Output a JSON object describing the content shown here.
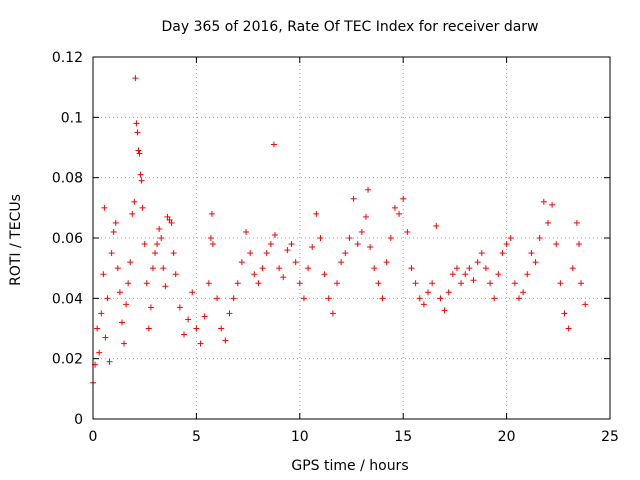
{
  "chart_data": {
    "type": "scatter",
    "title": "Day 365 of 2016, Rate Of TEC Index for receiver darw",
    "xlabel": "GPS time / hours",
    "ylabel": "ROTI / TECUs",
    "xlim": [
      0,
      25
    ],
    "ylim": [
      0,
      0.12
    ],
    "x_ticks": [
      0,
      5,
      10,
      15,
      20,
      25
    ],
    "x_tick_labels": [
      "0",
      "5",
      "10",
      "15",
      "20",
      "25"
    ],
    "y_ticks": [
      0,
      0.02,
      0.04,
      0.06,
      0.08,
      0.1,
      0.12
    ],
    "y_tick_labels": [
      "0",
      "0.02",
      "0.04",
      "0.06",
      "0.08",
      "0.1",
      "0.12"
    ],
    "grid": true,
    "legend": "none",
    "marker": "+",
    "marker_color": "#ff0000",
    "series": [
      {
        "points": [
          [
            0.0,
            0.012
          ],
          [
            0.1,
            0.018
          ],
          [
            0.2,
            0.03
          ],
          [
            0.3,
            0.022
          ],
          [
            0.4,
            0.035
          ],
          [
            0.5,
            0.048
          ],
          [
            0.55,
            0.07
          ],
          [
            0.6,
            0.027
          ],
          [
            0.7,
            0.04
          ],
          [
            0.8,
            0.019
          ],
          [
            0.9,
            0.055
          ],
          [
            1.0,
            0.062
          ],
          [
            1.1,
            0.065
          ],
          [
            1.2,
            0.05
          ],
          [
            1.3,
            0.042
          ],
          [
            1.4,
            0.032
          ],
          [
            1.5,
            0.025
          ],
          [
            1.6,
            0.038
          ],
          [
            1.7,
            0.045
          ],
          [
            1.8,
            0.052
          ],
          [
            1.9,
            0.068
          ],
          [
            2.0,
            0.072
          ],
          [
            2.05,
            0.113
          ],
          [
            2.1,
            0.098
          ],
          [
            2.15,
            0.095
          ],
          [
            2.2,
            0.089
          ],
          [
            2.25,
            0.088
          ],
          [
            2.3,
            0.081
          ],
          [
            2.35,
            0.079
          ],
          [
            2.4,
            0.07
          ],
          [
            2.5,
            0.058
          ],
          [
            2.6,
            0.045
          ],
          [
            2.7,
            0.03
          ],
          [
            2.8,
            0.037
          ],
          [
            2.9,
            0.05
          ],
          [
            3.0,
            0.055
          ],
          [
            3.1,
            0.058
          ],
          [
            3.2,
            0.063
          ],
          [
            3.3,
            0.06
          ],
          [
            3.4,
            0.05
          ],
          [
            3.5,
            0.044
          ],
          [
            3.6,
            0.067
          ],
          [
            3.7,
            0.066
          ],
          [
            3.8,
            0.065
          ],
          [
            3.9,
            0.055
          ],
          [
            4.0,
            0.048
          ],
          [
            4.2,
            0.037
          ],
          [
            4.4,
            0.028
          ],
          [
            4.6,
            0.033
          ],
          [
            4.8,
            0.042
          ],
          [
            5.0,
            0.03
          ],
          [
            5.2,
            0.025
          ],
          [
            5.4,
            0.034
          ],
          [
            5.6,
            0.045
          ],
          [
            5.7,
            0.06
          ],
          [
            5.75,
            0.068
          ],
          [
            5.8,
            0.058
          ],
          [
            6.0,
            0.04
          ],
          [
            6.2,
            0.03
          ],
          [
            6.4,
            0.026
          ],
          [
            6.6,
            0.035
          ],
          [
            6.8,
            0.04
          ],
          [
            7.0,
            0.045
          ],
          [
            7.2,
            0.052
          ],
          [
            7.4,
            0.062
          ],
          [
            7.6,
            0.055
          ],
          [
            7.8,
            0.048
          ],
          [
            8.0,
            0.045
          ],
          [
            8.2,
            0.05
          ],
          [
            8.4,
            0.055
          ],
          [
            8.6,
            0.058
          ],
          [
            8.75,
            0.091
          ],
          [
            8.8,
            0.061
          ],
          [
            9.0,
            0.05
          ],
          [
            9.2,
            0.047
          ],
          [
            9.4,
            0.056
          ],
          [
            9.6,
            0.058
          ],
          [
            9.8,
            0.052
          ],
          [
            10.0,
            0.045
          ],
          [
            10.2,
            0.04
          ],
          [
            10.4,
            0.05
          ],
          [
            10.6,
            0.057
          ],
          [
            10.8,
            0.068
          ],
          [
            11.0,
            0.06
          ],
          [
            11.2,
            0.048
          ],
          [
            11.4,
            0.04
          ],
          [
            11.6,
            0.035
          ],
          [
            11.8,
            0.045
          ],
          [
            12.0,
            0.052
          ],
          [
            12.2,
            0.055
          ],
          [
            12.4,
            0.06
          ],
          [
            12.6,
            0.073
          ],
          [
            12.8,
            0.058
          ],
          [
            13.0,
            0.062
          ],
          [
            13.2,
            0.067
          ],
          [
            13.3,
            0.076
          ],
          [
            13.4,
            0.057
          ],
          [
            13.6,
            0.05
          ],
          [
            13.8,
            0.045
          ],
          [
            14.0,
            0.04
          ],
          [
            14.2,
            0.052
          ],
          [
            14.4,
            0.06
          ],
          [
            14.6,
            0.07
          ],
          [
            14.8,
            0.068
          ],
          [
            15.0,
            0.073
          ],
          [
            15.2,
            0.062
          ],
          [
            15.4,
            0.05
          ],
          [
            15.6,
            0.045
          ],
          [
            15.8,
            0.04
          ],
          [
            16.0,
            0.038
          ],
          [
            16.2,
            0.042
          ],
          [
            16.4,
            0.045
          ],
          [
            16.6,
            0.064
          ],
          [
            16.8,
            0.04
          ],
          [
            17.0,
            0.036
          ],
          [
            17.2,
            0.042
          ],
          [
            17.4,
            0.048
          ],
          [
            17.6,
            0.05
          ],
          [
            17.8,
            0.045
          ],
          [
            18.0,
            0.048
          ],
          [
            18.2,
            0.05
          ],
          [
            18.4,
            0.046
          ],
          [
            18.6,
            0.052
          ],
          [
            18.8,
            0.055
          ],
          [
            19.0,
            0.05
          ],
          [
            19.2,
            0.045
          ],
          [
            19.4,
            0.04
          ],
          [
            19.6,
            0.048
          ],
          [
            19.8,
            0.055
          ],
          [
            20.0,
            0.058
          ],
          [
            20.2,
            0.06
          ],
          [
            20.4,
            0.045
          ],
          [
            20.6,
            0.04
          ],
          [
            20.8,
            0.042
          ],
          [
            21.0,
            0.048
          ],
          [
            21.2,
            0.055
          ],
          [
            21.4,
            0.052
          ],
          [
            21.6,
            0.06
          ],
          [
            21.8,
            0.072
          ],
          [
            22.0,
            0.065
          ],
          [
            22.2,
            0.071
          ],
          [
            22.4,
            0.058
          ],
          [
            22.6,
            0.045
          ],
          [
            22.8,
            0.035
          ],
          [
            23.0,
            0.03
          ],
          [
            23.2,
            0.05
          ],
          [
            23.4,
            0.065
          ],
          [
            23.5,
            0.058
          ],
          [
            23.6,
            0.045
          ],
          [
            23.8,
            0.038
          ]
        ]
      }
    ]
  }
}
